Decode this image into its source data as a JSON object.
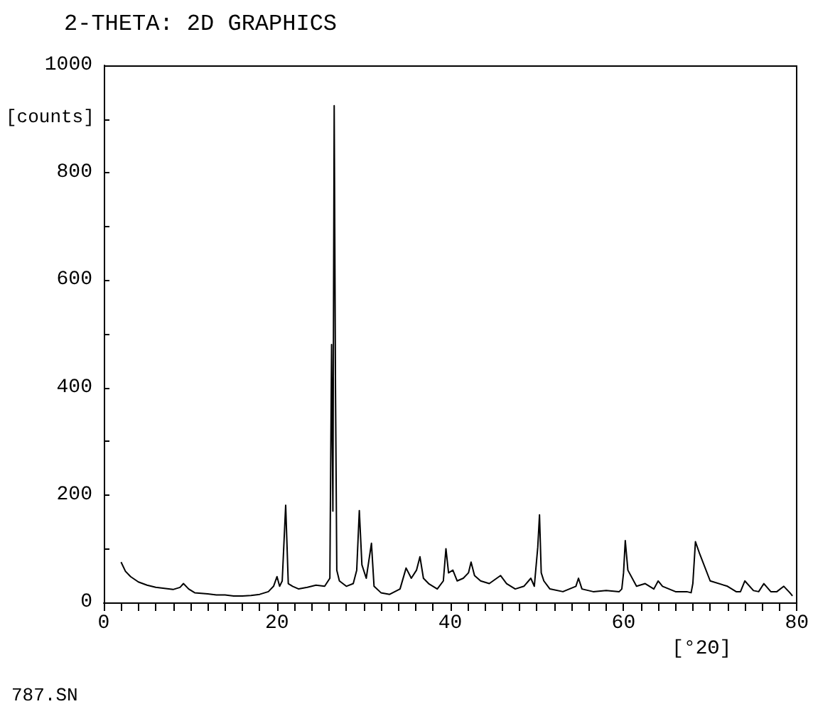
{
  "chart_data": {
    "type": "line",
    "title": "2-THETA: 2D GRAPHICS",
    "xlabel": "[°2Θ]",
    "ylabel": "[counts]",
    "annotations": [
      "787.SN"
    ],
    "xlim": [
      0,
      80
    ],
    "ylim": [
      0,
      1000
    ],
    "xticks": [
      0,
      {
        "value": 2,
        "label": null
      },
      {
        "value": 4,
        "label": null
      },
      {
        "value": 6,
        "label": null
      },
      {
        "value": 8,
        "label": null
      },
      {
        "value": 10,
        "label": null
      },
      {
        "value": 12,
        "label": null
      },
      {
        "value": 14,
        "label": null
      },
      {
        "value": 16,
        "label": null
      },
      {
        "value": 18,
        "label": null
      },
      20,
      {
        "value": 22,
        "label": null
      },
      {
        "value": 24,
        "label": null
      },
      {
        "value": 26,
        "label": null
      },
      {
        "value": 28,
        "label": null
      },
      {
        "value": 30,
        "label": null
      },
      {
        "value": 32,
        "label": null
      },
      {
        "value": 34,
        "label": null
      },
      {
        "value": 36,
        "label": null
      },
      {
        "value": 38,
        "label": null
      },
      40,
      {
        "value": 42,
        "label": null
      },
      {
        "value": 44,
        "label": null
      },
      {
        "value": 46,
        "label": null
      },
      {
        "value": 48,
        "label": null
      },
      {
        "value": 50,
        "label": null
      },
      {
        "value": 52,
        "label": null
      },
      {
        "value": 54,
        "label": null
      },
      {
        "value": 56,
        "label": null
      },
      {
        "value": 58,
        "label": null
      },
      60,
      {
        "value": 62,
        "label": null
      },
      {
        "value": 64,
        "label": null
      },
      {
        "value": 66,
        "label": null
      },
      {
        "value": 68,
        "label": null
      },
      {
        "value": 70,
        "label": null
      },
      {
        "value": 72,
        "label": null
      },
      {
        "value": 74,
        "label": null
      },
      {
        "value": 76,
        "label": null
      },
      {
        "value": 78,
        "label": null
      },
      80
    ],
    "yticks": [
      0,
      {
        "value": 100,
        "label": null
      },
      200,
      {
        "value": 300,
        "label": null
      },
      400,
      {
        "value": 500,
        "label": null
      },
      600,
      {
        "value": 700,
        "label": null
      },
      800,
      {
        "value": 900,
        "label": null
      },
      1000
    ],
    "grid": false,
    "marker": "none",
    "line_style": "solid",
    "series": [
      {
        "color": "#000000",
        "x": [
          2.0,
          2.5,
          3.1,
          4,
          5,
          6,
          7,
          8,
          8.8,
          9.2,
          9.8,
          10.5,
          12,
          13,
          14,
          15,
          16,
          17,
          18,
          19,
          19.6,
          20.0,
          20.3,
          20.6,
          21.0,
          21.3,
          21.8,
          22.5,
          23.5,
          24.5,
          25.5,
          26.1,
          26.3,
          26.45,
          26.6,
          26.75,
          26.9,
          27.2,
          28,
          28.8,
          29.2,
          29.5,
          29.8,
          30.3,
          30.9,
          31.2,
          32,
          33,
          34.2,
          34.9,
          35.5,
          36.1,
          36.5,
          36.9,
          37.5,
          38.5,
          39.2,
          39.5,
          39.8,
          40.3,
          40.8,
          41.5,
          42.1,
          42.4,
          42.8,
          43.5,
          44.5,
          45.8,
          46.5,
          47.5,
          48.5,
          49.3,
          49.7,
          50.1,
          50.3,
          50.5,
          50.8,
          51.5,
          53,
          54.5,
          54.8,
          55.2,
          56.5,
          58,
          59.5,
          59.8,
          60.0,
          60.2,
          60.5,
          61.5,
          62.5,
          63.5,
          64,
          64.5,
          66,
          67.3,
          67.8,
          68.0,
          68.3,
          68.8,
          70,
          72,
          73,
          73.5,
          74,
          75,
          75.6,
          76.2,
          77,
          77.7,
          78.5,
          79.2,
          79.5
        ],
        "values": [
          75,
          58,
          48,
          38,
          32,
          28,
          26,
          24,
          28,
          35,
          25,
          18,
          16,
          14,
          14,
          12,
          12,
          13,
          15,
          20,
          30,
          48,
          30,
          40,
          181,
          35,
          30,
          25,
          28,
          32,
          30,
          45,
          480,
          170,
          925,
          400,
          60,
          40,
          30,
          35,
          60,
          171,
          70,
          45,
          110,
          30,
          18,
          15,
          25,
          64,
          45,
          60,
          85,
          45,
          35,
          25,
          40,
          100,
          55,
          60,
          40,
          45,
          55,
          75,
          50,
          40,
          35,
          50,
          35,
          25,
          30,
          45,
          30,
          103,
          163,
          55,
          40,
          25,
          20,
          30,
          45,
          25,
          20,
          22,
          20,
          25,
          55,
          115,
          60,
          30,
          35,
          25,
          40,
          30,
          20,
          20,
          18,
          35,
          113,
          90,
          40,
          30,
          20,
          20,
          40,
          22,
          20,
          35,
          20,
          20,
          30,
          18,
          12
        ]
      }
    ]
  }
}
